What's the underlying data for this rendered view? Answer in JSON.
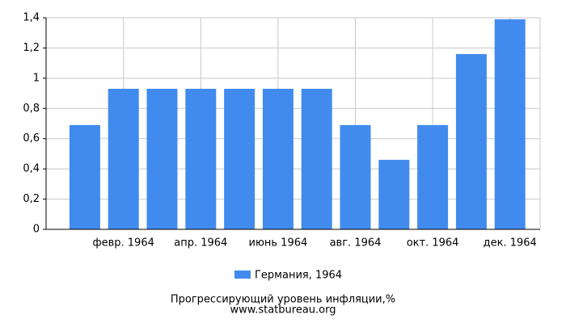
{
  "chart_data": {
    "type": "bar",
    "categories": [
      null,
      "февр. 1964",
      null,
      "апр. 1964",
      null,
      "июнь 1964",
      null,
      "авг. 1964",
      null,
      "окт. 1964",
      null,
      "дек. 1964"
    ],
    "series": [
      {
        "name": "Германия, 1964",
        "color": "#418bee",
        "values": [
          0.69,
          0.93,
          0.93,
          0.93,
          0.93,
          0.93,
          0.93,
          0.69,
          0.46,
          0.69,
          1.16,
          1.39
        ]
      }
    ],
    "ylim": [
      0,
      1.4
    ],
    "yticks": [
      0,
      {
        "value": 0.2,
        "label": "0,2"
      },
      {
        "value": 0.4,
        "label": "0,4"
      },
      {
        "value": 0.6,
        "label": "0,6"
      },
      {
        "value": 0.8,
        "label": "0,8"
      },
      1,
      {
        "value": 1.2,
        "label": "1,2"
      },
      {
        "value": 1.4,
        "label": "1,4"
      }
    ],
    "grid": true,
    "caption": "Прогрессирующий уровень инфляции,%",
    "source": "www.statbureau.org"
  }
}
